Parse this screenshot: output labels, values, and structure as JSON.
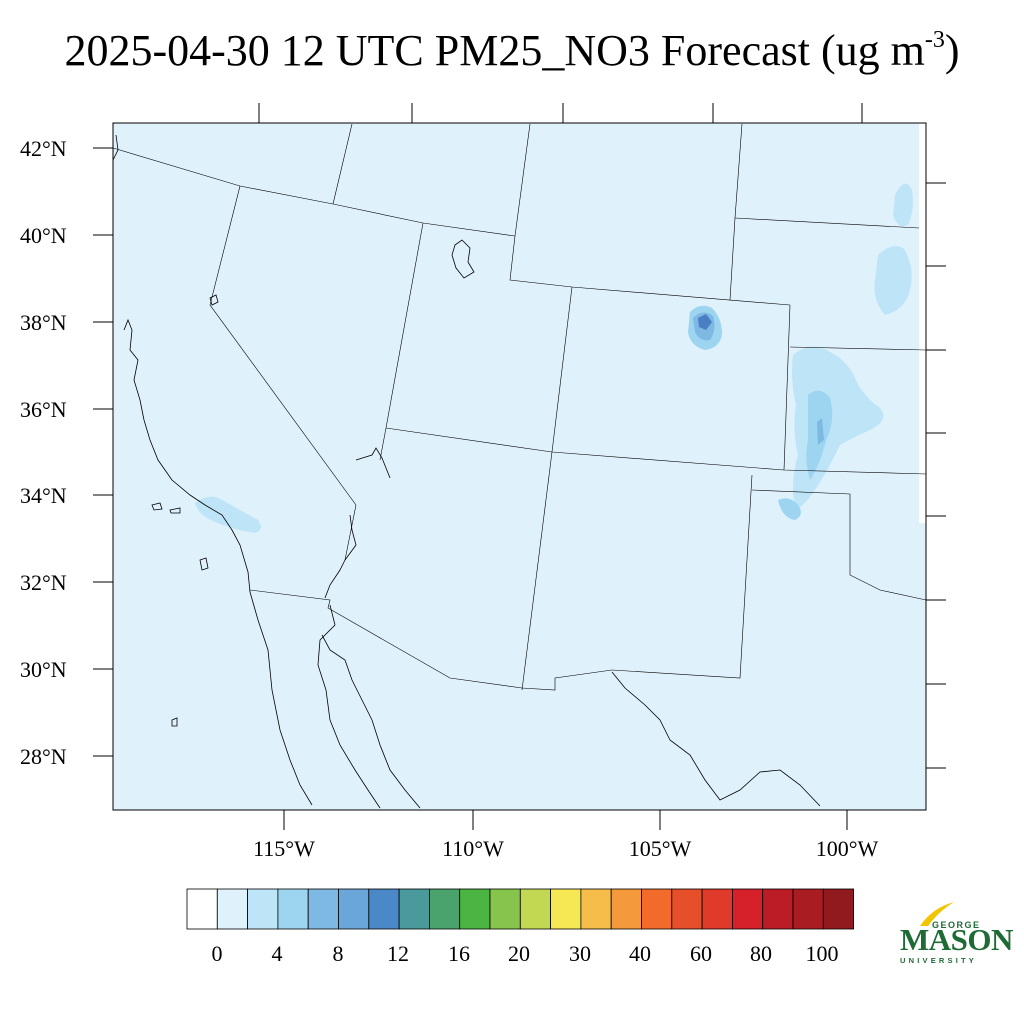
{
  "title": {
    "main": "2025-04-30 12 UTC PM25_NO3 Forecast (ug m",
    "exponent": "-3",
    "close": ")"
  },
  "map": {
    "lat_labels": [
      "42°N",
      "40°N",
      "38°N",
      "36°N",
      "34°N",
      "32°N",
      "30°N",
      "28°N"
    ],
    "lon_labels": [
      "115°W",
      "110°W",
      "105°W",
      "100°W"
    ],
    "background_color": "#dff1fb",
    "plume_colors": [
      "#bde4f7",
      "#9dd4f0",
      "#7eb9e4",
      "#4a7fc4"
    ]
  },
  "colorbar": {
    "colors": [
      "#ffffff",
      "#dff1fb",
      "#bde4f7",
      "#9dd4f0",
      "#7eb9e4",
      "#6aa6d9",
      "#4a88c8",
      "#4a9a9c",
      "#4aa36c",
      "#4bb443",
      "#87c44b",
      "#c3d852",
      "#f6e754",
      "#f6bd4a",
      "#f49a3c",
      "#f26b2a",
      "#e5502a",
      "#e03a2a",
      "#d6202a",
      "#bb1c25",
      "#a81c22",
      "#901a1e"
    ],
    "tick_labels": [
      "0",
      "4",
      "8",
      "12",
      "16",
      "20",
      "30",
      "40",
      "60",
      "80",
      "100"
    ]
  },
  "logo": {
    "line1": "GEORGE",
    "line2": "MASON",
    "line3": "UNIVERSITY",
    "color": "#1f6b35",
    "accent": "#f2c500"
  }
}
